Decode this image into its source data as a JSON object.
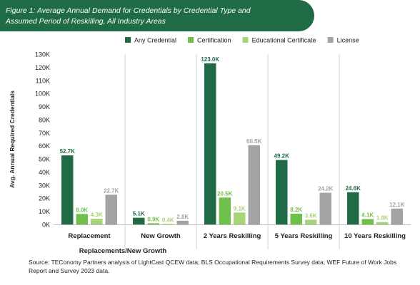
{
  "figure_title": {
    "line1": "Figure 1: Average Annual Demand for Credentials by Credential Type and",
    "line2": "Assumed Period of Reskilling, All Industry Areas"
  },
  "source_note": "Source: TEConomy Partners analysis of LightCast QCEW data; BLS Occupational Requirements Survey data; WEF Future of Work Jobs Report and Survey 2023 data.",
  "chart_data": {
    "type": "bar",
    "title": "",
    "xlabel": "Replacements/New Growth",
    "ylabel": "Avg. Annual Required Credentials",
    "ylim": [
      0,
      130000
    ],
    "ytick_labels": [
      "0K",
      "10K",
      "20K",
      "30K",
      "40K",
      "50K",
      "60K",
      "70K",
      "80K",
      "90K",
      "100K",
      "110K",
      "120K",
      "130K"
    ],
    "grid": false,
    "legend_position": "top",
    "categories": [
      "Replacement",
      "New Growth",
      "2 Years Reskilling",
      "5 Years Reskilling",
      "10 Years Reskilling"
    ],
    "series": [
      {
        "name": "Any Credential",
        "color": "#1f6b45",
        "values": [
          52700,
          5100,
          123000,
          49200,
          24600
        ],
        "labels": [
          "52.7K",
          "5.1K",
          "123.0K",
          "49.2K",
          "24.6K"
        ]
      },
      {
        "name": "Certification",
        "color": "#6fbf4b",
        "values": [
          8000,
          900,
          20500,
          8200,
          4100
        ],
        "labels": [
          "8.0K",
          "0.9K",
          "20.5K",
          "8.2K",
          "4.1K"
        ]
      },
      {
        "name": "Educational Certificate",
        "color": "#a8d479",
        "values": [
          4300,
          400,
          9100,
          3600,
          1800
        ],
        "labels": [
          "4.3K",
          "0.4K",
          "9.1K",
          "3.6K",
          "1.8K"
        ]
      },
      {
        "name": "License",
        "color": "#a3a3a3",
        "values": [
          22700,
          2800,
          60500,
          24200,
          12100
        ],
        "labels": [
          "22.7K",
          "2.8K",
          "60.5K",
          "24.2K",
          "12.1K"
        ]
      }
    ]
  }
}
